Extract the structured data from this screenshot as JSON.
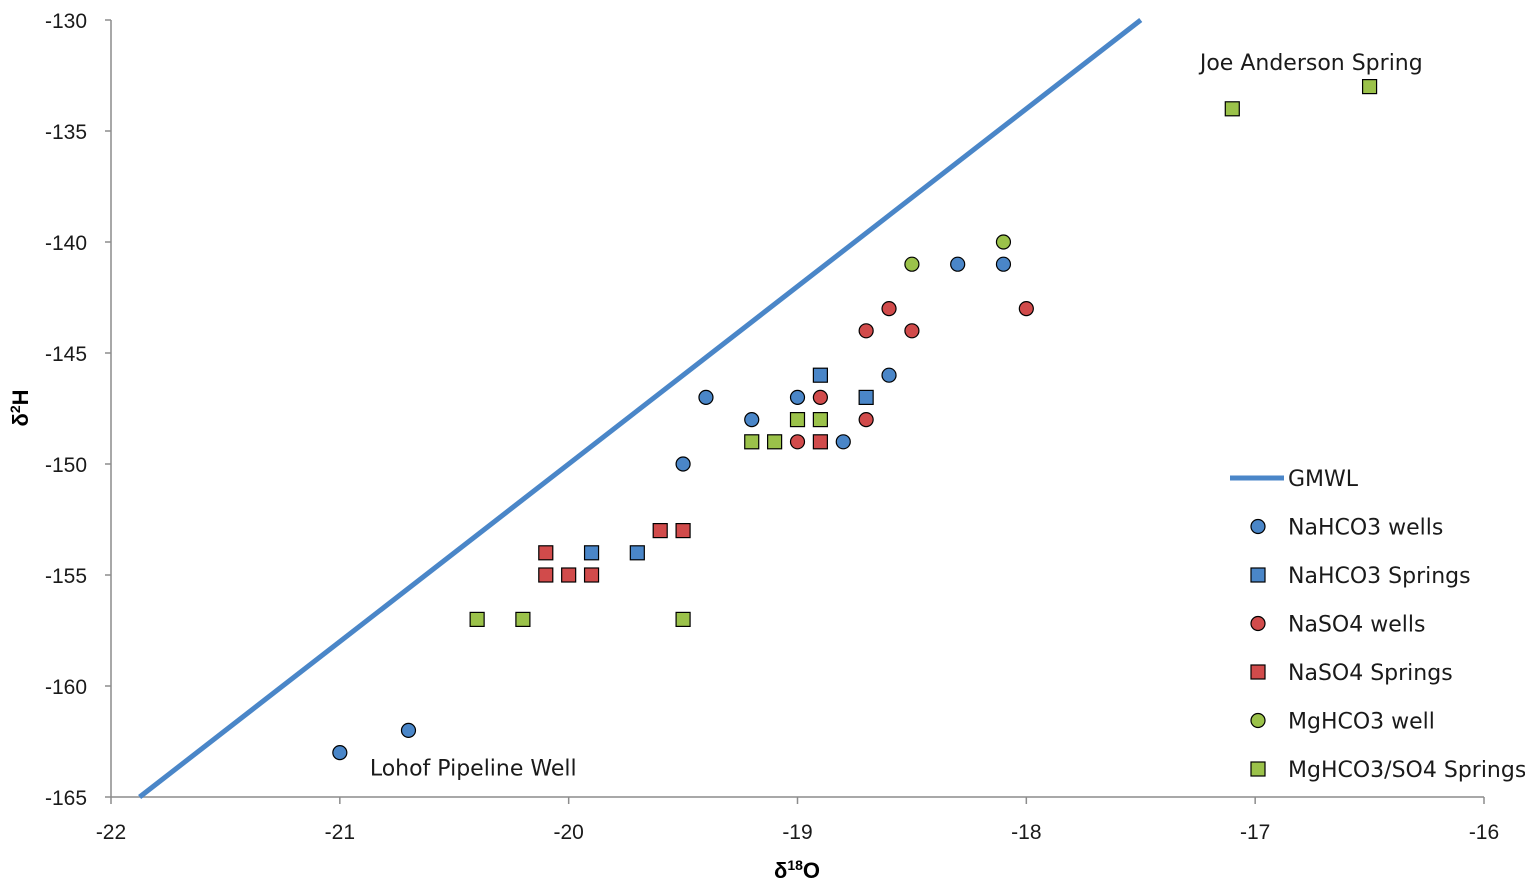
{
  "chart_data": {
    "type": "scatter",
    "xlabel": "δ18O",
    "ylabel": "δ2H",
    "xlim": [
      -22,
      -16
    ],
    "ylim": [
      -165,
      -130
    ],
    "xticks": [
      -22,
      -21,
      -20,
      -19,
      -18,
      -17,
      -16
    ],
    "yticks": [
      -130,
      -135,
      -140,
      -145,
      -150,
      -155,
      -160,
      -165
    ],
    "grid": false,
    "legend_position": "right",
    "line": {
      "name": "GMWL",
      "color": "#4a86c8",
      "slope": 8,
      "intercept": 10
    },
    "series": [
      {
        "name": "NaHCO3 wells",
        "marker": "circle",
        "color": "#4a86c8",
        "points": [
          [
            -21.0,
            -163
          ],
          [
            -20.7,
            -162
          ],
          [
            -19.5,
            -150
          ],
          [
            -19.4,
            -147
          ],
          [
            -19.2,
            -148
          ],
          [
            -19.0,
            -147
          ],
          [
            -18.8,
            -149
          ],
          [
            -18.6,
            -146
          ],
          [
            -18.3,
            -141
          ],
          [
            -18.1,
            -141
          ]
        ]
      },
      {
        "name": "NaHCO3 Springs",
        "marker": "square",
        "color": "#4a86c8",
        "points": [
          [
            -19.9,
            -154
          ],
          [
            -19.7,
            -154
          ],
          [
            -18.9,
            -146
          ],
          [
            -18.7,
            -147
          ]
        ]
      },
      {
        "name": "NaSO4 wells",
        "marker": "circle",
        "color": "#d14b4b",
        "points": [
          [
            -19.0,
            -149
          ],
          [
            -18.9,
            -147
          ],
          [
            -18.7,
            -148
          ],
          [
            -18.7,
            -144
          ],
          [
            -18.6,
            -143
          ],
          [
            -18.5,
            -144
          ],
          [
            -18.0,
            -143
          ]
        ]
      },
      {
        "name": "NaSO4 Springs",
        "marker": "square",
        "color": "#d14b4b",
        "points": [
          [
            -20.1,
            -154
          ],
          [
            -20.1,
            -155
          ],
          [
            -20.0,
            -155
          ],
          [
            -19.9,
            -155
          ],
          [
            -19.6,
            -153
          ],
          [
            -19.5,
            -153
          ],
          [
            -18.9,
            -149
          ]
        ]
      },
      {
        "name": "MgHCO3 well",
        "marker": "circle",
        "color": "#9bc24a",
        "points": [
          [
            -18.5,
            -141
          ],
          [
            -18.1,
            -140
          ]
        ]
      },
      {
        "name": "MgHCO3/SO4 Springs",
        "marker": "square",
        "color": "#9bc24a",
        "points": [
          [
            -20.4,
            -157
          ],
          [
            -20.2,
            -157
          ],
          [
            -19.5,
            -157
          ],
          [
            -19.2,
            -149
          ],
          [
            -19.1,
            -149
          ],
          [
            -19.0,
            -148
          ],
          [
            -18.9,
            -148
          ],
          [
            -17.1,
            -134
          ],
          [
            -16.5,
            -133
          ]
        ]
      }
    ],
    "annotations": [
      {
        "text": "Joe Anderson Spring",
        "x": -17.1,
        "y": -134
      },
      {
        "text": "Lohof Pipeline Well",
        "x": -21.0,
        "y": -163
      }
    ]
  }
}
